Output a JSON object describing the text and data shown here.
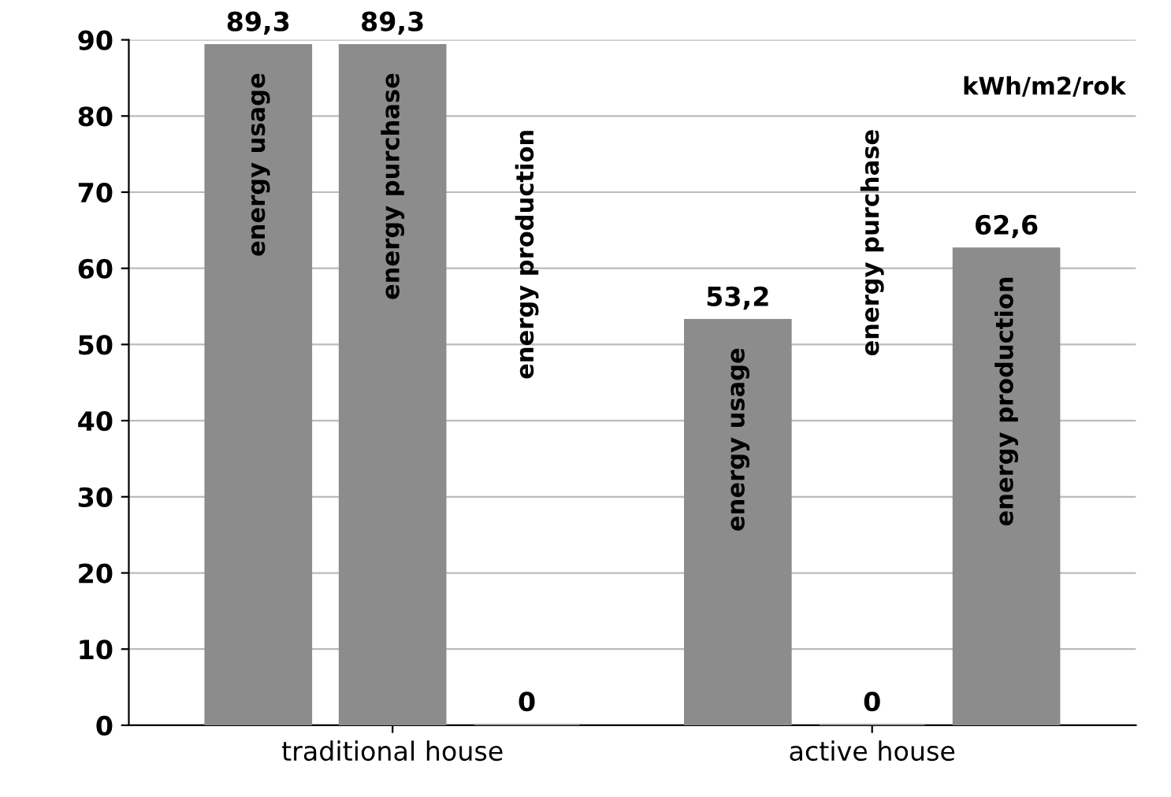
{
  "chart_data": {
    "type": "bar",
    "categories": [
      "traditional house",
      "active house"
    ],
    "series": [
      {
        "name": "energy usage",
        "color": "#8c8c8c",
        "values": [
          89.3,
          53.2
        ],
        "value_labels": [
          "89,3",
          "53,2"
        ]
      },
      {
        "name": "energy purchase",
        "color": "#8c8c8c",
        "values": [
          89.3,
          0
        ],
        "value_labels": [
          "89,3",
          "0"
        ]
      },
      {
        "name": "energy production",
        "color": "#8c8c8c",
        "values": [
          0,
          62.6
        ],
        "value_labels": [
          "0",
          "62,6"
        ]
      }
    ],
    "ylim": [
      0,
      90
    ],
    "yticks": [
      0,
      10,
      20,
      30,
      40,
      50,
      60,
      70,
      80,
      90
    ],
    "grid": "y",
    "annotations": [
      "kWh/m2/rok"
    ]
  }
}
